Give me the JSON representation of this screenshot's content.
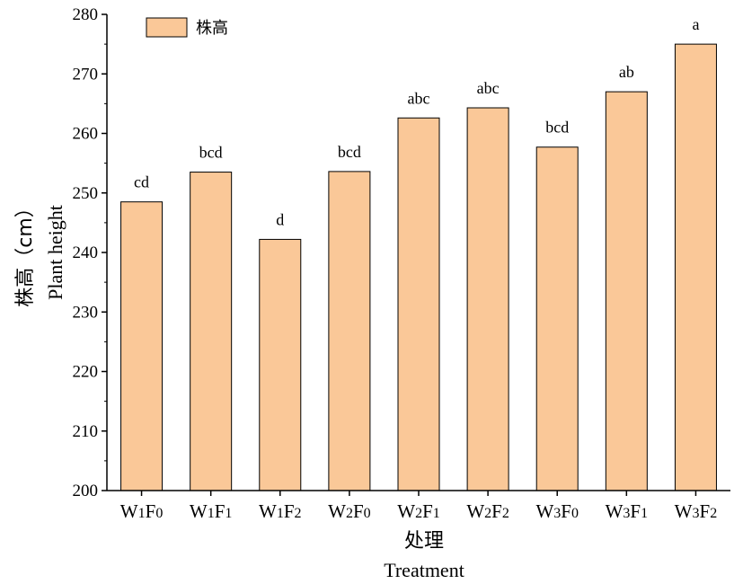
{
  "chart_data": {
    "type": "bar",
    "categories": [
      {
        "main": "W",
        "s1": "1",
        "mid": "F",
        "s2": "0"
      },
      {
        "main": "W",
        "s1": "1",
        "mid": "F",
        "s2": "1"
      },
      {
        "main": "W",
        "s1": "1",
        "mid": "F",
        "s2": "2"
      },
      {
        "main": "W",
        "s1": "2",
        "mid": "F",
        "s2": "0"
      },
      {
        "main": "W",
        "s1": "2",
        "mid": "F",
        "s2": "1"
      },
      {
        "main": "W",
        "s1": "2",
        "mid": "F",
        "s2": "2"
      },
      {
        "main": "W",
        "s1": "3",
        "mid": "F",
        "s2": "0"
      },
      {
        "main": "W",
        "s1": "3",
        "mid": "F",
        "s2": "1"
      },
      {
        "main": "W",
        "s1": "3",
        "mid": "F",
        "s2": "2"
      }
    ],
    "series": [
      {
        "name": "株高",
        "values": [
          248.5,
          253.5,
          242.2,
          253.6,
          262.6,
          264.3,
          257.7,
          267.0,
          275.0
        ],
        "labels": [
          "cd",
          "bcd",
          "d",
          "bcd",
          "abc",
          "abc",
          "bcd",
          "ab",
          "a"
        ],
        "color": "#fac898"
      }
    ],
    "xlabel": "处理",
    "xlabel_en": "Treatment",
    "ylabel": "株高（cm）",
    "ylabel_en": "Plant height",
    "ylim": [
      200,
      280
    ],
    "yticks": [
      200,
      210,
      220,
      230,
      240,
      250,
      260,
      270,
      280
    ],
    "legend": "top-left",
    "grid": false
  }
}
